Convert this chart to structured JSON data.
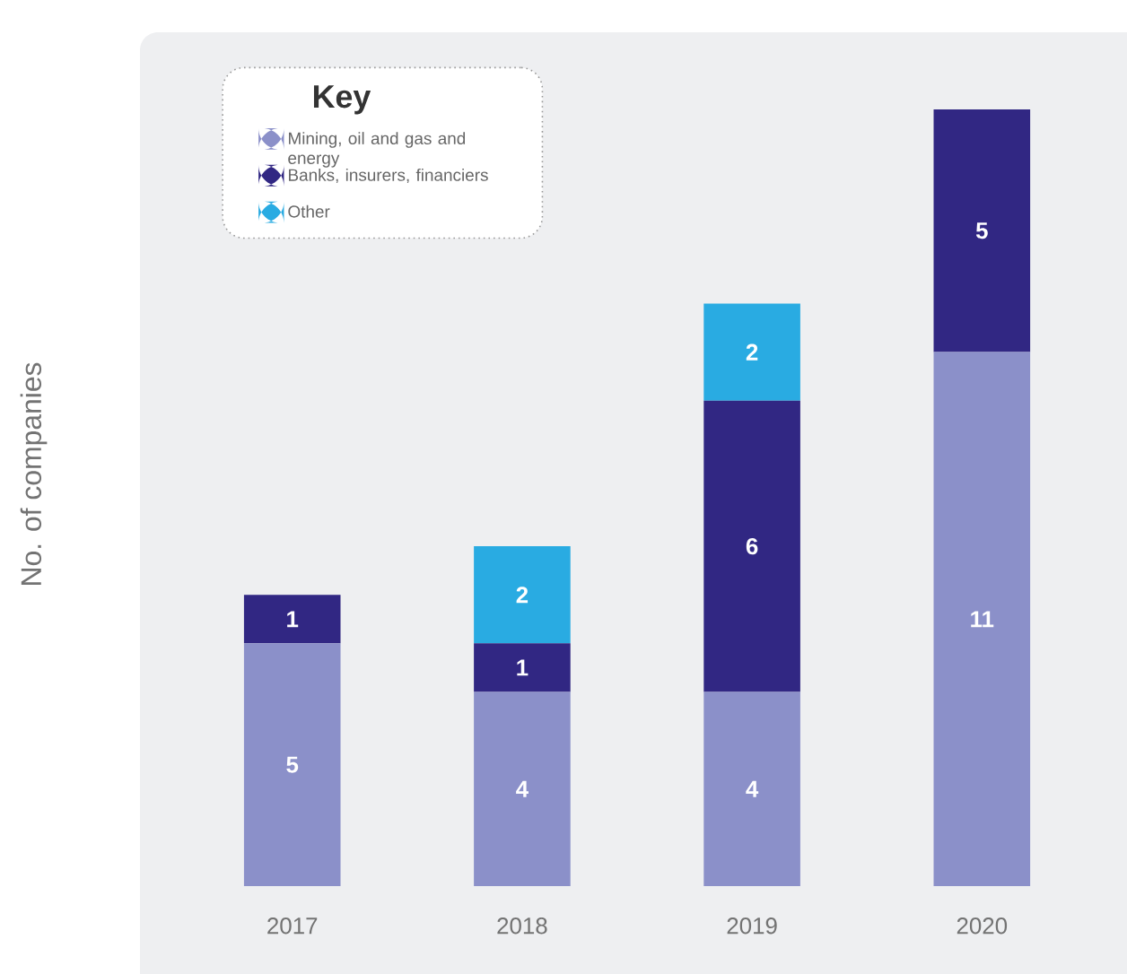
{
  "chart_data": {
    "type": "bar",
    "stacked": true,
    "ylabel": "No. of companies",
    "legend_title": "Key",
    "categories": [
      "2017",
      "2018",
      "2019",
      "2020"
    ],
    "series": [
      {
        "name": "Mining, oil and gas and energy",
        "color": "#8b90c9",
        "values": [
          5,
          4,
          4,
          11
        ]
      },
      {
        "name": "Banks, insurers, financiers",
        "color": "#312783",
        "values": [
          1,
          1,
          6,
          5
        ]
      },
      {
        "name": "Other",
        "color": "#29abe2",
        "values": [
          null,
          2,
          2,
          null
        ]
      }
    ],
    "tick_labels": "x",
    "data_labels": true,
    "legend": "top left"
  }
}
